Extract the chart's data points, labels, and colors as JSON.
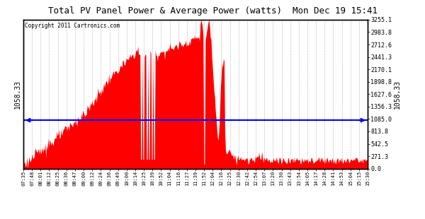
{
  "title": "Total PV Panel Power & Average Power (watts)  Mon Dec 19 15:41",
  "copyright": "Copyright 2011 Cartronics.com",
  "avg_line_y": 1058.33,
  "avg_label": "1058.33",
  "y_right_ticks": [
    0.0,
    271.3,
    542.5,
    813.8,
    1085.0,
    1356.3,
    1627.6,
    1898.8,
    2170.1,
    2441.3,
    2712.6,
    2983.8,
    3255.1
  ],
  "y_right_labels": [
    "0.0",
    "271.3",
    "542.5",
    "813.8",
    "1085.0",
    "1356.3",
    "1627.6",
    "1898.8",
    "2170.1",
    "2441.3",
    "2712.6",
    "2983.8",
    "3255.1"
  ],
  "ylim": [
    0,
    3255.1
  ],
  "x_tick_labels": [
    "07:35",
    "07:48",
    "08:01",
    "08:12",
    "08:25",
    "08:36",
    "08:47",
    "09:00",
    "09:12",
    "09:24",
    "09:36",
    "09:49",
    "10:00",
    "10:14",
    "10:25",
    "10:39",
    "10:52",
    "11:04",
    "11:16",
    "11:27",
    "11:39",
    "11:52",
    "12:04",
    "12:16",
    "12:25",
    "12:30",
    "12:42",
    "12:54",
    "13:07",
    "13:20",
    "13:30",
    "13:43",
    "13:54",
    "14:05",
    "14:17",
    "14:28",
    "14:41",
    "14:53",
    "15:04",
    "15:15",
    "15:30"
  ],
  "fill_color": "#FF0000",
  "line_color": "#FF0000",
  "avg_line_color": "#0000FF",
  "background_color": "#FFFFFF",
  "grid_color": "#BBBBBB",
  "font_family": "DejaVu Sans Mono"
}
